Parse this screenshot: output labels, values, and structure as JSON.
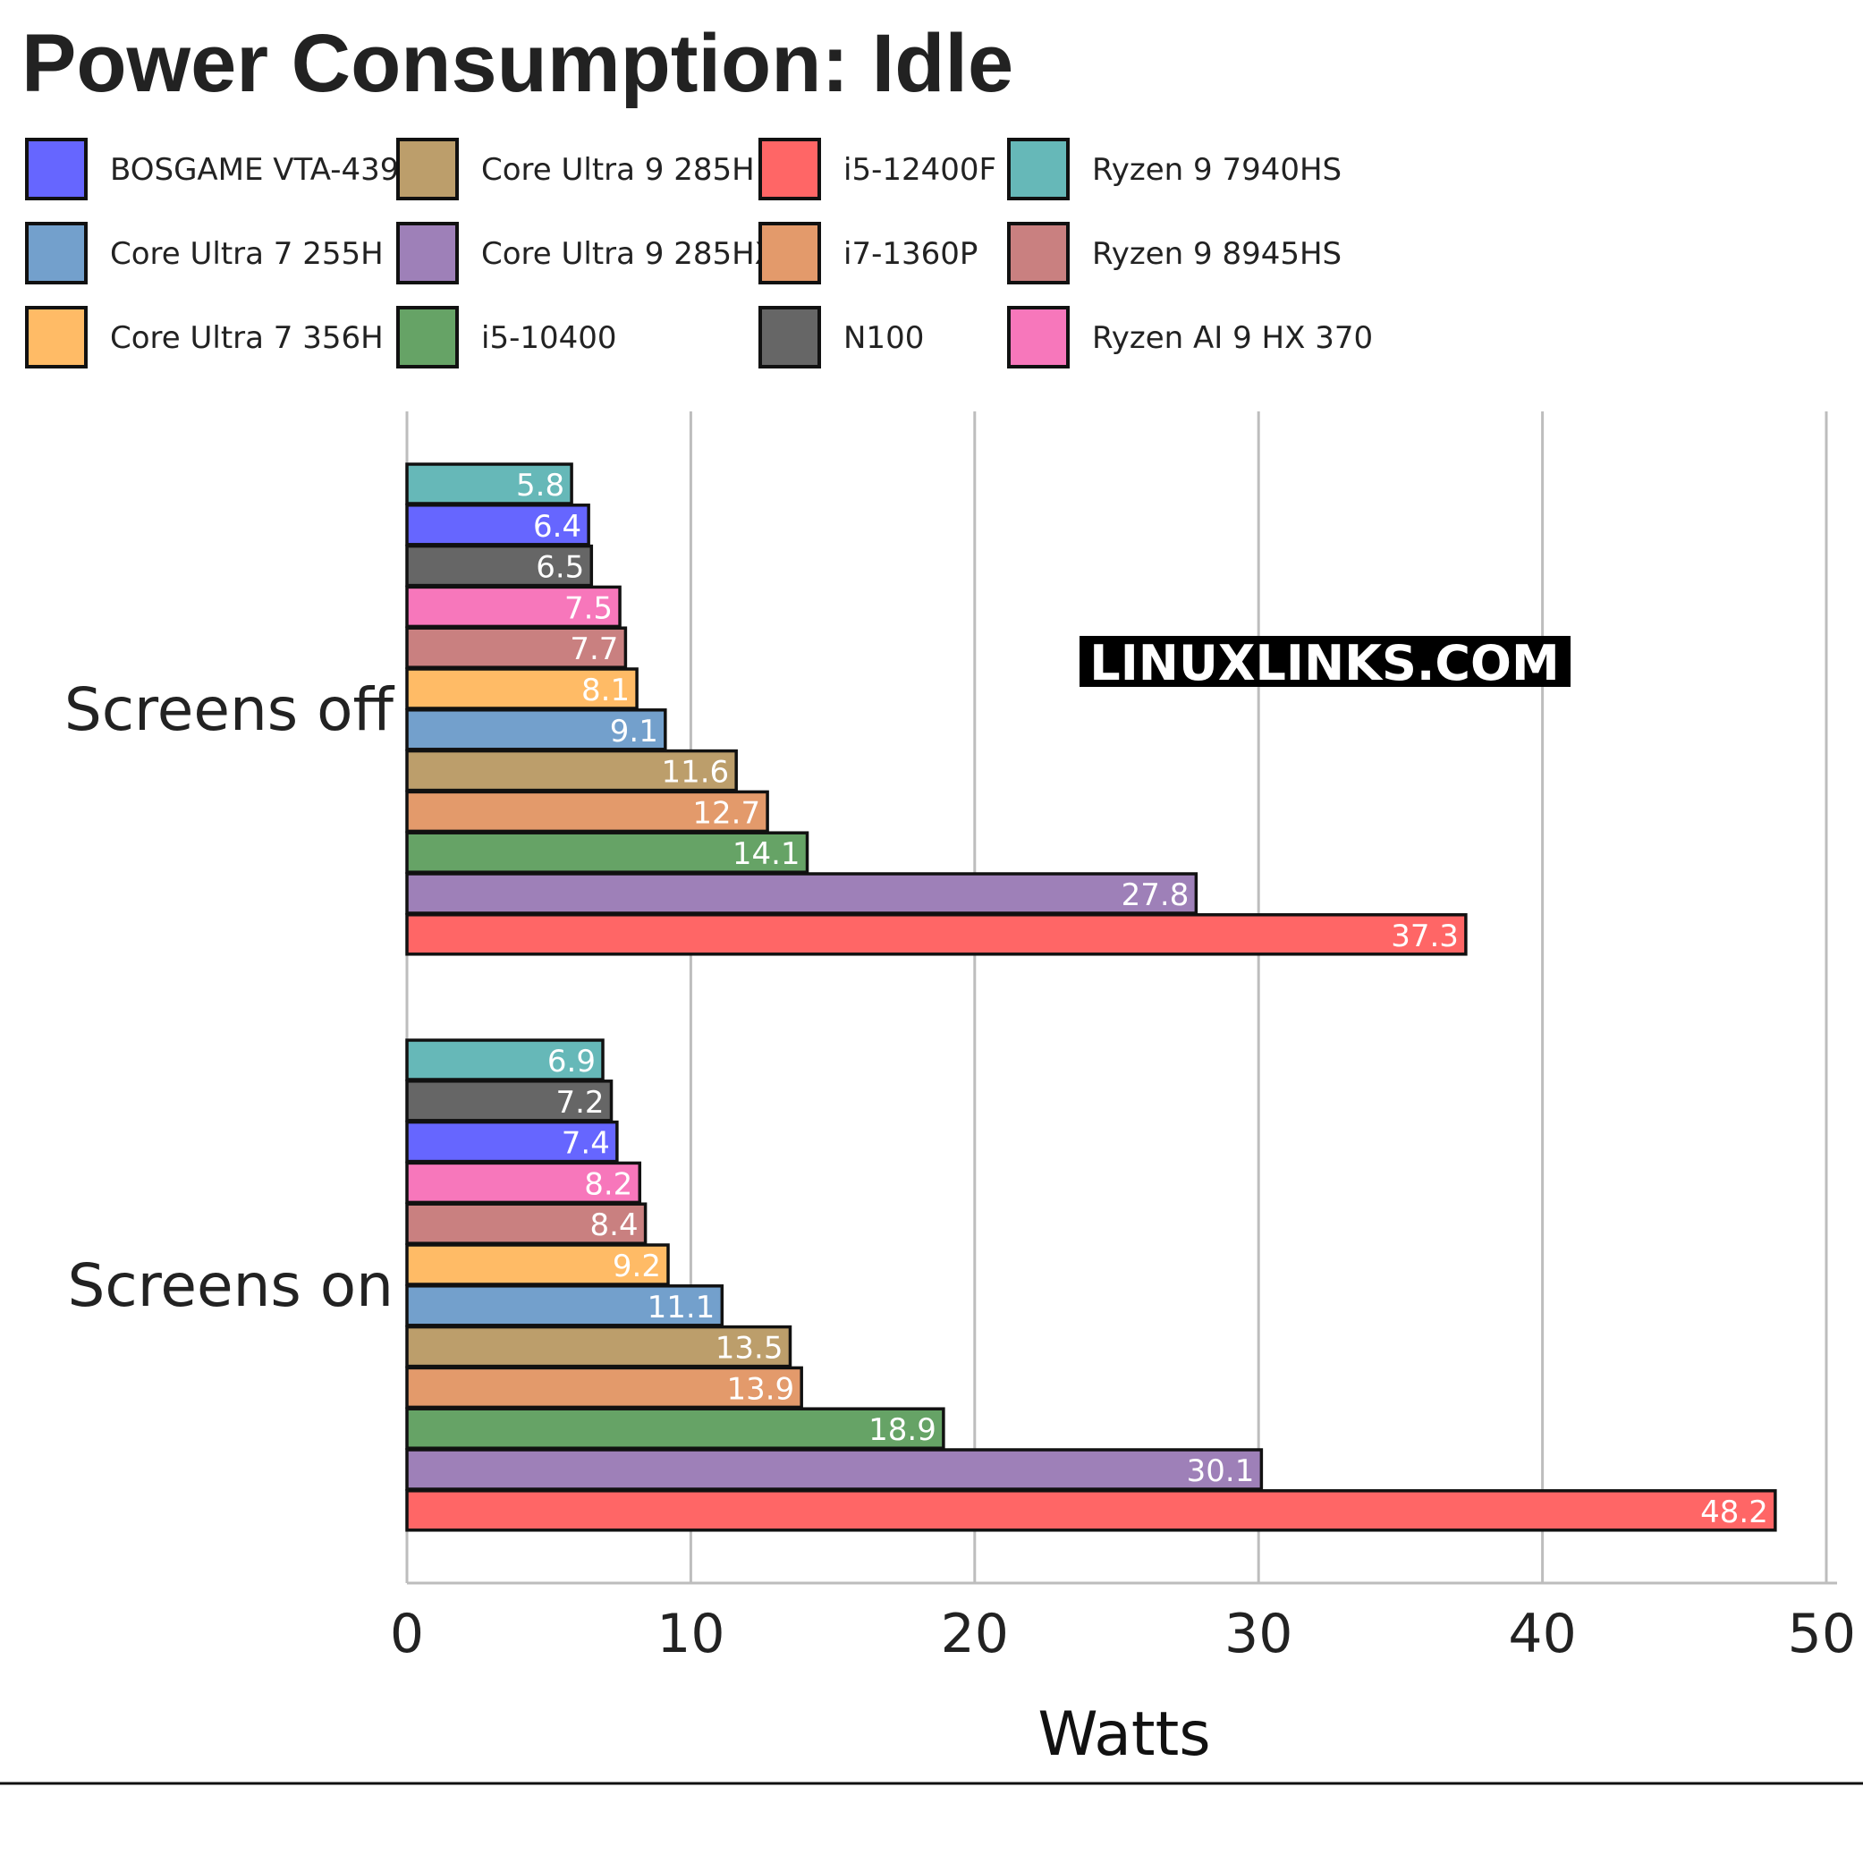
{
  "chart_data": {
    "type": "bar",
    "orientation": "horizontal",
    "title": "Power Consumption: Idle",
    "xlabel": "Watts",
    "xlim": [
      0,
      50
    ],
    "xticks": [
      "0",
      "10",
      "20",
      "30",
      "40",
      "50"
    ],
    "grid": "vertical",
    "legend_placement": "top",
    "watermark": "LINUXLINKS.COM",
    "legend": [
      {
        "name": "BOSGAME VTA-439",
        "color": "#6666ff"
      },
      {
        "name": "Core Ultra 9 285H",
        "color": "#bc9e6b"
      },
      {
        "name": "i5-12400F",
        "color": "#ff6666"
      },
      {
        "name": "Ryzen 9 7940HS",
        "color": "#66b8b8"
      },
      {
        "name": "Core Ultra 7 255H",
        "color": "#73a0cc"
      },
      {
        "name": "Core Ultra 9 285HX",
        "color": "#9e80b8"
      },
      {
        "name": "i7-1360P",
        "color": "#e39a6b"
      },
      {
        "name": "Ryzen 9 8945HS",
        "color": "#c98080"
      },
      {
        "name": "Core Ultra 7 356H",
        "color": "#ffbb66"
      },
      {
        "name": "i5-10400",
        "color": "#66a366"
      },
      {
        "name": "N100",
        "color": "#666666"
      },
      {
        "name": "Ryzen AI 9 HX 370",
        "color": "#f777bb"
      }
    ],
    "groups": [
      {
        "category": "Screens off",
        "bars": [
          {
            "name": "Ryzen 9 7940HS",
            "value": 5.8,
            "label": "5.8"
          },
          {
            "name": "BOSGAME VTA-439",
            "value": 6.4,
            "label": "6.4"
          },
          {
            "name": "N100",
            "value": 6.5,
            "label": "6.5"
          },
          {
            "name": "Ryzen AI 9 HX 370",
            "value": 7.5,
            "label": "7.5"
          },
          {
            "name": "Ryzen 9 8945HS",
            "value": 7.7,
            "label": "7.7"
          },
          {
            "name": "Core Ultra 7 356H",
            "value": 8.1,
            "label": "8.1"
          },
          {
            "name": "Core Ultra 7 255H",
            "value": 9.1,
            "label": "9.1"
          },
          {
            "name": "Core Ultra 9 285H",
            "value": 11.6,
            "label": "11.6"
          },
          {
            "name": "i7-1360P",
            "value": 12.7,
            "label": "12.7"
          },
          {
            "name": "i5-10400",
            "value": 14.1,
            "label": "14.1"
          },
          {
            "name": "Core Ultra 9 285HX",
            "value": 27.8,
            "label": "27.8"
          },
          {
            "name": "i5-12400F",
            "value": 37.3,
            "label": "37.3"
          }
        ]
      },
      {
        "category": "Screens on",
        "bars": [
          {
            "name": "Ryzen 9 7940HS",
            "value": 6.9,
            "label": "6.9"
          },
          {
            "name": "N100",
            "value": 7.2,
            "label": "7.2"
          },
          {
            "name": "BOSGAME VTA-439",
            "value": 7.4,
            "label": "7.4"
          },
          {
            "name": "Ryzen AI 9 HX 370",
            "value": 8.2,
            "label": "8.2"
          },
          {
            "name": "Ryzen 9 8945HS",
            "value": 8.4,
            "label": "8.4"
          },
          {
            "name": "Core Ultra 7 356H",
            "value": 9.2,
            "label": "9.2"
          },
          {
            "name": "Core Ultra 7 255H",
            "value": 11.1,
            "label": "11.1"
          },
          {
            "name": "Core Ultra 9 285H",
            "value": 13.5,
            "label": "13.5"
          },
          {
            "name": "i7-1360P",
            "value": 13.9,
            "label": "13.9"
          },
          {
            "name": "i5-10400",
            "value": 18.9,
            "label": "18.9"
          },
          {
            "name": "Core Ultra 9 285HX",
            "value": 30.1,
            "label": "30.1"
          },
          {
            "name": "i5-12400F",
            "value": 48.2,
            "label": "48.2"
          }
        ]
      }
    ]
  }
}
